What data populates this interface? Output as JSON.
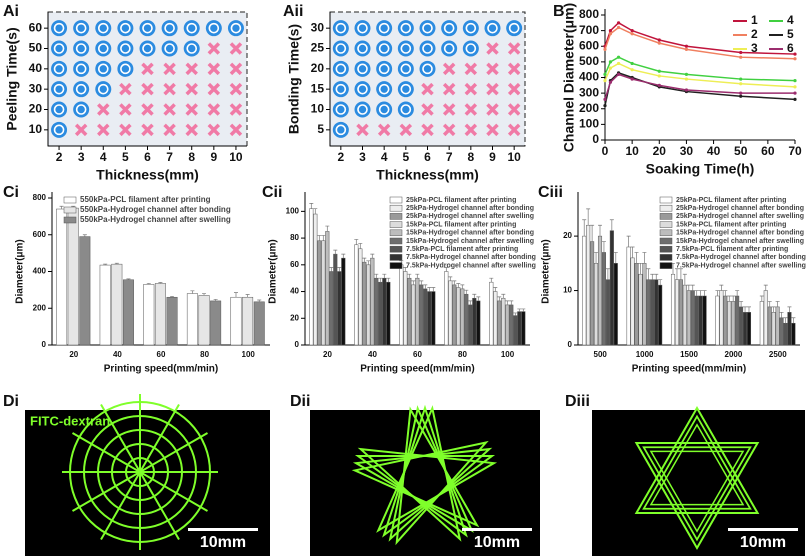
{
  "chart_data": [
    {
      "panel": "Ai",
      "type": "scatter",
      "xlabel": "Thickness(mm)",
      "ylabel": "Peeling Time(s)",
      "xlim": [
        1.5,
        10.5
      ],
      "ylim": [
        5,
        65
      ],
      "xticks": [
        2,
        3,
        4,
        5,
        6,
        7,
        8,
        9,
        10
      ],
      "yticks": [
        10,
        20,
        30,
        40,
        50,
        60
      ],
      "series": [
        {
          "marker": "circle",
          "color": "#2b8be0",
          "x": [
            2,
            2,
            3,
            2,
            3,
            4,
            2,
            3,
            4,
            5,
            2,
            3,
            4,
            5,
            6,
            7,
            8,
            2,
            3,
            4,
            5,
            6,
            7,
            8,
            9,
            10
          ],
          "y": [
            10,
            20,
            20,
            30,
            30,
            30,
            40,
            40,
            40,
            40,
            50,
            50,
            50,
            50,
            50,
            50,
            50,
            60,
            60,
            60,
            60,
            60,
            60,
            60,
            60,
            60
          ]
        },
        {
          "marker": "cross",
          "color": "#f07aa6",
          "x": [
            3,
            4,
            5,
            6,
            7,
            8,
            9,
            10,
            4,
            5,
            6,
            7,
            8,
            9,
            10,
            5,
            6,
            7,
            8,
            9,
            10,
            6,
            7,
            8,
            9,
            10,
            9,
            10
          ],
          "y": [
            10,
            10,
            10,
            10,
            10,
            10,
            10,
            10,
            20,
            20,
            20,
            20,
            20,
            20,
            20,
            30,
            30,
            30,
            30,
            30,
            30,
            40,
            40,
            40,
            40,
            40,
            50,
            50
          ]
        }
      ]
    },
    {
      "panel": "Aii",
      "type": "scatter",
      "xlabel": "Thickness(mm)",
      "ylabel": "Bonding Time(s)",
      "xlim": [
        1.5,
        10.5
      ],
      "ylim": [
        2.5,
        32.5
      ],
      "xticks": [
        2,
        3,
        4,
        5,
        6,
        7,
        8,
        9,
        10
      ],
      "yticks": [
        5,
        10,
        15,
        20,
        25,
        30
      ],
      "series": [
        {
          "marker": "circle",
          "color": "#2b8be0",
          "x": [
            2,
            2,
            3,
            4,
            5,
            2,
            3,
            4,
            5,
            2,
            3,
            4,
            5,
            6,
            2,
            3,
            4,
            5,
            6,
            7,
            8,
            2,
            3,
            4,
            5,
            6,
            7,
            8,
            9,
            10
          ],
          "y": [
            5,
            10,
            10,
            10,
            10,
            15,
            15,
            15,
            15,
            20,
            20,
            20,
            20,
            20,
            25,
            25,
            25,
            25,
            25,
            25,
            25,
            30,
            30,
            30,
            30,
            30,
            30,
            30,
            30,
            30
          ]
        },
        {
          "marker": "cross",
          "color": "#f07aa6",
          "x": [
            3,
            4,
            5,
            6,
            7,
            8,
            9,
            10,
            6,
            7,
            8,
            9,
            10,
            6,
            7,
            8,
            9,
            10,
            7,
            8,
            9,
            10,
            9,
            10
          ],
          "y": [
            5,
            5,
            5,
            5,
            5,
            5,
            5,
            5,
            10,
            10,
            10,
            10,
            10,
            15,
            15,
            15,
            15,
            15,
            20,
            20,
            20,
            20,
            25,
            25
          ]
        }
      ]
    },
    {
      "panel": "B",
      "type": "line",
      "xlabel": "Soaking Time(h)",
      "ylabel": "Channel Diameter(μm)",
      "xlim": [
        0,
        70
      ],
      "ylim": [
        0,
        800
      ],
      "xticks": [
        0,
        10,
        20,
        30,
        40,
        50,
        60,
        70
      ],
      "yticks": [
        0,
        100,
        200,
        300,
        400,
        500,
        600,
        700,
        800
      ],
      "legend": "upper right",
      "legend_columns": 2,
      "x": [
        0,
        2,
        5,
        10,
        20,
        30,
        50,
        70
      ],
      "series": [
        {
          "name": "1",
          "color": "#c0143c",
          "values": [
            600,
            700,
            750,
            700,
            640,
            600,
            560,
            550
          ]
        },
        {
          "name": "2",
          "color": "#f08060",
          "values": [
            580,
            680,
            720,
            680,
            620,
            580,
            530,
            520
          ]
        },
        {
          "name": "3",
          "color": "#eeee55",
          "values": [
            380,
            460,
            490,
            450,
            410,
            390,
            360,
            340
          ]
        },
        {
          "name": "4",
          "color": "#40d040",
          "values": [
            420,
            500,
            530,
            490,
            440,
            420,
            390,
            380
          ]
        },
        {
          "name": "5",
          "color": "#202020",
          "values": [
            220,
            380,
            430,
            400,
            340,
            310,
            280,
            260
          ]
        },
        {
          "name": "6",
          "color": "#9b2d6e",
          "values": [
            260,
            370,
            420,
            390,
            350,
            320,
            300,
            300
          ]
        }
      ]
    },
    {
      "panel": "Ci",
      "type": "bar",
      "xlabel": "Printing speed(mm/min)",
      "ylabel": "Diameter(μm)",
      "ylim": [
        0,
        800
      ],
      "yticks": [
        0,
        200,
        400,
        600,
        800
      ],
      "legend": "upper left",
      "categories": [
        "20",
        "40",
        "60",
        "80",
        "100"
      ],
      "series": [
        {
          "name": "550kPa-PCL filament after printing",
          "color": "#ffffff",
          "values": [
            740,
            435,
            330,
            280,
            260
          ],
          "errors": [
            15,
            5,
            5,
            15,
            25
          ]
        },
        {
          "name": "550kPa-Hydrogel channel after bonding",
          "color": "#e6e6e6",
          "values": [
            745,
            440,
            335,
            270,
            260
          ],
          "errors": [
            10,
            5,
            5,
            10,
            15
          ]
        },
        {
          "name": "550kPa-Hydrogel channel after swelling",
          "color": "#8a8a8a",
          "values": [
            590,
            355,
            260,
            240,
            235
          ],
          "errors": [
            10,
            5,
            5,
            8,
            10
          ]
        }
      ]
    },
    {
      "panel": "Cii",
      "type": "bar",
      "xlabel": "Printing speed(mm/min)",
      "ylabel": "Diameter(μm)",
      "ylim": [
        0,
        110
      ],
      "yticks": [
        0,
        20,
        40,
        60,
        80,
        100
      ],
      "legend": "upper right",
      "categories": [
        "20",
        "40",
        "60",
        "80",
        "100"
      ],
      "series": [
        {
          "name": "25kPa-PCL filament after printing",
          "color": "#ffffff",
          "values": [
            102,
            75,
            60,
            55,
            47
          ],
          "errors": [
            4,
            4,
            3,
            3,
            3
          ]
        },
        {
          "name": "25kPa-Hydrogel channel after bonding",
          "color": "#eeeeee",
          "values": [
            98,
            72,
            55,
            48,
            40
          ],
          "errors": [
            4,
            4,
            3,
            3,
            3
          ]
        },
        {
          "name": "25kPa-Hydrogel channel after swelling",
          "color": "#9a9a9a",
          "values": [
            78,
            62,
            50,
            45,
            33
          ],
          "errors": [
            4,
            3,
            3,
            3,
            3
          ]
        },
        {
          "name": "15kPa-PCL filament after printing",
          "color": "#dcdcdc",
          "values": [
            78,
            60,
            45,
            43,
            35
          ],
          "errors": [
            4,
            3,
            3,
            3,
            3
          ]
        },
        {
          "name": "15kPa-Hydrogel channel after bonding",
          "color": "#bdbdbd",
          "values": [
            85,
            65,
            50,
            42,
            30
          ],
          "errors": [
            4,
            3,
            3,
            3,
            3
          ]
        },
        {
          "name": "15kPa-Hydrogel channel after swelling",
          "color": "#6e6e6e",
          "values": [
            55,
            50,
            45,
            38,
            30
          ],
          "errors": [
            3,
            3,
            3,
            3,
            3
          ]
        },
        {
          "name": "7.5kPa-PCL filament after printing",
          "color": "#555555",
          "values": [
            68,
            47,
            42,
            30,
            22
          ],
          "errors": [
            3,
            3,
            3,
            3,
            2
          ]
        },
        {
          "name": "7.5kPa-Hydrogel channel after bonding",
          "color": "#333333",
          "values": [
            55,
            50,
            40,
            35,
            25
          ],
          "errors": [
            3,
            3,
            3,
            3,
            2
          ]
        },
        {
          "name": "7.5kPa-Hydrogel channel after swelling",
          "color": "#111111",
          "values": [
            65,
            47,
            40,
            33,
            25
          ],
          "errors": [
            3,
            3,
            3,
            3,
            2
          ]
        }
      ]
    },
    {
      "panel": "Ciii",
      "type": "bar",
      "xlabel": "Printing speed(mm/min)",
      "ylabel": "Diameter(μm)",
      "ylim": [
        0,
        27
      ],
      "yticks": [
        0,
        10,
        20
      ],
      "legend": "upper right",
      "categories": [
        "500",
        "1000",
        "1500",
        "2000",
        "2500"
      ],
      "series": [
        {
          "name": "25kPa-PCL filament after printing",
          "color": "#ffffff",
          "values": [
            20,
            18,
            13,
            9,
            8
          ],
          "errors": [
            3,
            2,
            2,
            1,
            1
          ]
        },
        {
          "name": "25kPa-Hydrogel channel after bonding",
          "color": "#eeeeee",
          "values": [
            22,
            16,
            12,
            10,
            10
          ],
          "errors": [
            3,
            2,
            2,
            1,
            1
          ]
        },
        {
          "name": "25kPa-Hydrogel channel after swelling",
          "color": "#9a9a9a",
          "values": [
            19,
            15,
            12,
            9,
            7
          ],
          "errors": [
            3,
            2,
            2,
            1,
            1
          ]
        },
        {
          "name": "15kPa-PCL filament after printing",
          "color": "#dcdcdc",
          "values": [
            15,
            13,
            11,
            8,
            6
          ],
          "errors": [
            2,
            2,
            2,
            1,
            1
          ]
        },
        {
          "name": "15kPa-Hydrogel channel after bonding",
          "color": "#bdbdbd",
          "values": [
            20,
            15,
            10,
            8,
            7
          ],
          "errors": [
            2,
            2,
            1,
            1,
            1
          ]
        },
        {
          "name": "15kPa-Hydrogel channel after swelling",
          "color": "#6e6e6e",
          "values": [
            17,
            12,
            10,
            9,
            5
          ],
          "errors": [
            2,
            2,
            1,
            1,
            1
          ]
        },
        {
          "name": "7.5kPa-PCL filament after printing",
          "color": "#555555",
          "values": [
            12,
            12,
            9,
            7,
            4
          ],
          "errors": [
            2,
            1,
            1,
            1,
            1
          ]
        },
        {
          "name": "7.5kPa-Hydrogel channel after bonding",
          "color": "#333333",
          "values": [
            21,
            12,
            9,
            6,
            6
          ],
          "errors": [
            2,
            1,
            1,
            1,
            1
          ]
        },
        {
          "name": "7.5kPa-Hydrogel channel after swelling",
          "color": "#111111",
          "values": [
            15,
            11,
            9,
            6,
            4
          ],
          "errors": [
            2,
            1,
            1,
            1,
            1
          ]
        }
      ]
    }
  ],
  "images": [
    {
      "panel": "Di",
      "caption": "FITC-dextran",
      "scale_bar": "10mm"
    },
    {
      "panel": "Dii",
      "scale_bar": "10mm"
    },
    {
      "panel": "Diii",
      "scale_bar": "10mm"
    }
  ]
}
